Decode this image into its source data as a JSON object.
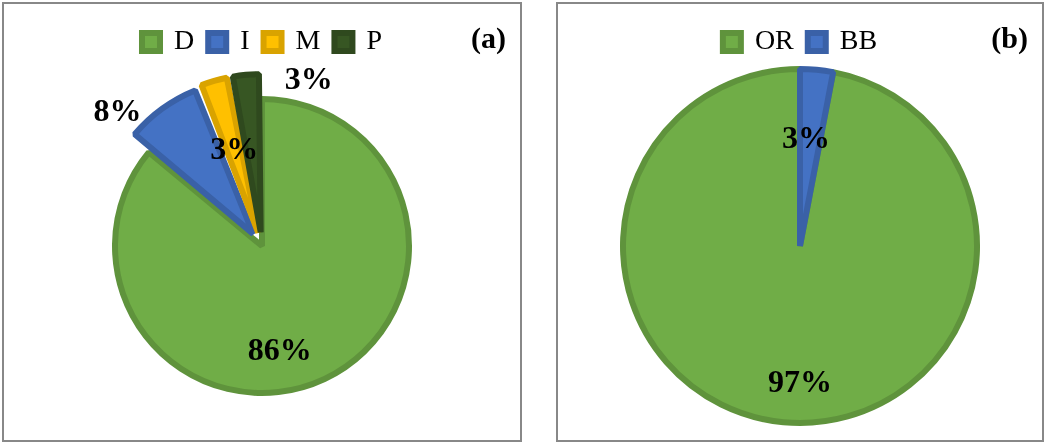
{
  "chart_data": [
    {
      "type": "pie",
      "title": "(a)",
      "categories": [
        "D",
        "I",
        "M",
        "P"
      ],
      "values": [
        86,
        8,
        3,
        3
      ],
      "colors": [
        "#70ad47",
        "#4472c4",
        "#ffc000",
        "#375623"
      ],
      "value_labels": [
        "86%",
        "8%",
        "3%",
        "3%"
      ],
      "legend": "top"
    },
    {
      "type": "pie",
      "title": "(b)",
      "categories": [
        "OR",
        "BB"
      ],
      "values": [
        97,
        3
      ],
      "colors": [
        "#70ad47",
        "#4472c4"
      ],
      "value_labels": [
        "97%",
        "3%"
      ],
      "legend": "top"
    }
  ]
}
